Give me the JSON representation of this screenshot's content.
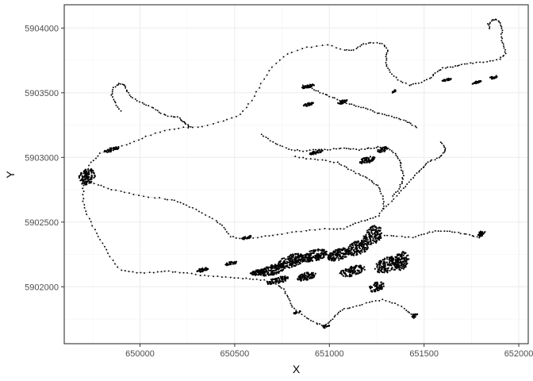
{
  "chart_data": {
    "type": "scatter",
    "title": "",
    "xlabel": "X",
    "ylabel": "Y",
    "xlim": [
      649600,
      652050
    ],
    "ylim": [
      5901560,
      5904180
    ],
    "x_ticks": [
      650000,
      650500,
      651000,
      651500,
      652000
    ],
    "x_tick_labels": [
      "650000",
      "650500",
      "651000",
      "651500",
      "652000"
    ],
    "y_ticks": [
      5902000,
      5902500,
      5903000,
      5903500,
      5904000
    ],
    "y_tick_labels": [
      "5902000",
      "5902500",
      "5903000",
      "5903500",
      "5904000"
    ],
    "grid": true,
    "legend": "none",
    "point_color": "#000000",
    "line_color": "#bdbdbd",
    "series": [
      {
        "path": [
          [
            649710,
            5902860
          ],
          [
            649740,
            5902960
          ],
          [
            649790,
            5903030
          ],
          [
            649860,
            5903070
          ],
          [
            649950,
            5903110
          ],
          [
            650030,
            5903160
          ],
          [
            650130,
            5903210
          ],
          [
            650230,
            5903230
          ],
          [
            650330,
            5903240
          ],
          [
            650440,
            5903280
          ],
          [
            650530,
            5903330
          ],
          [
            650590,
            5903440
          ],
          [
            650640,
            5903570
          ],
          [
            650700,
            5903700
          ],
          [
            650780,
            5903800
          ],
          [
            650880,
            5903850
          ],
          [
            650990,
            5903870
          ],
          [
            651080,
            5903830
          ],
          [
            651130,
            5903830
          ],
          [
            651170,
            5903870
          ],
          [
            651220,
            5903890
          ],
          [
            651280,
            5903880
          ],
          [
            651310,
            5903830
          ],
          [
            651300,
            5903780
          ],
          [
            651300,
            5903720
          ],
          [
            651320,
            5903660
          ],
          [
            651360,
            5903600
          ],
          [
            651420,
            5903560
          ],
          [
            651470,
            5903570
          ],
          [
            651530,
            5903610
          ],
          [
            651560,
            5903650
          ],
          [
            651600,
            5903690
          ],
          [
            651650,
            5903700
          ],
          [
            651700,
            5903720
          ],
          [
            651760,
            5903730
          ],
          [
            651830,
            5903740
          ],
          [
            651900,
            5903760
          ],
          [
            651930,
            5903800
          ],
          [
            651920,
            5903860
          ],
          [
            651910,
            5903920
          ],
          [
            651910,
            5903980
          ],
          [
            651900,
            5904040
          ],
          [
            651880,
            5904070
          ],
          [
            651860,
            5904060
          ],
          [
            651840,
            5904030
          ],
          [
            651850,
            5903990
          ]
        ],
        "path2": [
          [
            649710,
            5902860
          ],
          [
            649760,
            5902800
          ],
          [
            649830,
            5902760
          ],
          [
            649920,
            5902730
          ],
          [
            650020,
            5902700
          ],
          [
            650130,
            5902680
          ],
          [
            650200,
            5902660
          ],
          [
            650260,
            5902620
          ],
          [
            650330,
            5902570
          ],
          [
            650400,
            5902510
          ],
          [
            650440,
            5902460
          ],
          [
            650480,
            5902390
          ],
          [
            650540,
            5902370
          ],
          [
            650620,
            5902380
          ],
          [
            650700,
            5902400
          ],
          [
            650800,
            5902420
          ],
          [
            650900,
            5902440
          ],
          [
            651000,
            5902450
          ],
          [
            651080,
            5902450
          ],
          [
            651140,
            5902490
          ],
          [
            651200,
            5902520
          ],
          [
            651260,
            5902550
          ],
          [
            651290,
            5902620
          ],
          [
            651280,
            5902700
          ],
          [
            651260,
            5902770
          ],
          [
            651230,
            5902810
          ],
          [
            651190,
            5902850
          ],
          [
            651140,
            5902880
          ],
          [
            651090,
            5902920
          ],
          [
            651040,
            5902960
          ],
          [
            650960,
            5902980
          ],
          [
            650880,
            5902990
          ],
          [
            650800,
            5903010
          ]
        ],
        "path3": [
          [
            649710,
            5902860
          ],
          [
            649700,
            5902760
          ],
          [
            649700,
            5902660
          ],
          [
            649720,
            5902560
          ],
          [
            649760,
            5902440
          ],
          [
            649800,
            5902340
          ],
          [
            649840,
            5902230
          ],
          [
            649900,
            5902130
          ],
          [
            649980,
            5902110
          ],
          [
            650070,
            5902110
          ],
          [
            650150,
            5902120
          ],
          [
            650230,
            5902110
          ],
          [
            650320,
            5902090
          ],
          [
            650410,
            5902080
          ],
          [
            650500,
            5902070
          ],
          [
            650580,
            5902060
          ],
          [
            650660,
            5902050
          ],
          [
            650720,
            5902020
          ],
          [
            650760,
            5901980
          ],
          [
            650780,
            5901920
          ],
          [
            650800,
            5901860
          ],
          [
            650830,
            5901810
          ],
          [
            650880,
            5901760
          ],
          [
            650930,
            5901720
          ],
          [
            650970,
            5901700
          ],
          [
            651010,
            5901740
          ],
          [
            651040,
            5901790
          ],
          [
            651080,
            5901830
          ],
          [
            651140,
            5901850
          ],
          [
            651210,
            5901880
          ],
          [
            651280,
            5901900
          ],
          [
            651350,
            5901870
          ],
          [
            651410,
            5901820
          ],
          [
            651440,
            5901780
          ],
          [
            651450,
            5901750
          ]
        ],
        "path4": [
          [
            651290,
            5902600
          ],
          [
            651340,
            5902680
          ],
          [
            651390,
            5902760
          ],
          [
            651430,
            5902830
          ],
          [
            651470,
            5902890
          ],
          [
            651500,
            5902930
          ],
          [
            651530,
            5902970
          ],
          [
            651580,
            5903000
          ],
          [
            651610,
            5903040
          ],
          [
            651610,
            5903080
          ],
          [
            651580,
            5903130
          ]
        ],
        "path5": [
          [
            651290,
            5902400
          ],
          [
            651360,
            5902390
          ],
          [
            651440,
            5902380
          ],
          [
            651500,
            5902410
          ],
          [
            651560,
            5902430
          ],
          [
            651620,
            5902430
          ],
          [
            651680,
            5902420
          ],
          [
            651740,
            5902400
          ],
          [
            651790,
            5902380
          ],
          [
            651810,
            5902400
          ],
          [
            651830,
            5902430
          ]
        ],
        "path6": [
          [
            649900,
            5903360
          ],
          [
            649870,
            5903420
          ],
          [
            649850,
            5903480
          ],
          [
            649860,
            5903540
          ],
          [
            649890,
            5903570
          ],
          [
            649920,
            5903560
          ],
          [
            649930,
            5903510
          ],
          [
            649960,
            5903460
          ],
          [
            650010,
            5903420
          ],
          [
            650060,
            5903390
          ],
          [
            650100,
            5903350
          ],
          [
            650150,
            5903320
          ],
          [
            650200,
            5903310
          ],
          [
            650230,
            5903280
          ],
          [
            650250,
            5903250
          ],
          [
            650270,
            5903230
          ]
        ],
        "path7": [
          [
            650640,
            5903180
          ],
          [
            650690,
            5903130
          ],
          [
            650740,
            5903090
          ],
          [
            650800,
            5903060
          ],
          [
            650860,
            5903050
          ],
          [
            650930,
            5903060
          ],
          [
            650990,
            5903060
          ],
          [
            651050,
            5903070
          ],
          [
            651100,
            5903070
          ],
          [
            651160,
            5903060
          ],
          [
            651210,
            5903070
          ],
          [
            651260,
            5903080
          ],
          [
            651310,
            5903070
          ],
          [
            651350,
            5903030
          ],
          [
            651370,
            5902980
          ],
          [
            651380,
            5902920
          ],
          [
            651390,
            5902860
          ],
          [
            651380,
            5902800
          ],
          [
            651360,
            5902740
          ],
          [
            651330,
            5902690
          ]
        ],
        "path8": [
          [
            650860,
            5903560
          ],
          [
            650900,
            5903540
          ],
          [
            650940,
            5903510
          ],
          [
            650990,
            5903480
          ],
          [
            651040,
            5903450
          ],
          [
            651090,
            5903420
          ],
          [
            651140,
            5903400
          ],
          [
            651190,
            5903380
          ],
          [
            651240,
            5903350
          ],
          [
            651290,
            5903330
          ],
          [
            651340,
            5903310
          ],
          [
            651390,
            5903290
          ],
          [
            651430,
            5903260
          ],
          [
            651470,
            5903220
          ]
        ],
        "clusters": [
          [
            649720,
            5902850,
            45,
            60,
            120
          ],
          [
            649850,
            5903060,
            40,
            15,
            40
          ],
          [
            650480,
            5902180,
            30,
            15,
            30
          ],
          [
            650700,
            5902130,
            70,
            40,
            160
          ],
          [
            650800,
            5902200,
            70,
            50,
            160
          ],
          [
            650920,
            5902240,
            70,
            45,
            160
          ],
          [
            651050,
            5902250,
            60,
            45,
            140
          ],
          [
            651150,
            5902300,
            60,
            55,
            150
          ],
          [
            651230,
            5902400,
            50,
            70,
            140
          ],
          [
            651310,
            5902170,
            70,
            60,
            170
          ],
          [
            651380,
            5902200,
            40,
            70,
            110
          ],
          [
            651120,
            5902120,
            70,
            40,
            110
          ],
          [
            650880,
            5902080,
            50,
            30,
            90
          ],
          [
            651250,
            5902000,
            40,
            40,
            70
          ],
          [
            651280,
            5903060,
            25,
            20,
            40
          ],
          [
            651200,
            5902980,
            40,
            25,
            60
          ],
          [
            650890,
            5903550,
            35,
            12,
            45
          ],
          [
            650890,
            5903410,
            25,
            12,
            30
          ],
          [
            651070,
            5903430,
            25,
            15,
            30
          ],
          [
            650930,
            5903040,
            35,
            12,
            40
          ],
          [
            651340,
            5903510,
            12,
            10,
            14
          ],
          [
            651620,
            5903600,
            25,
            8,
            22
          ],
          [
            651780,
            5903580,
            25,
            10,
            22
          ],
          [
            651870,
            5903620,
            25,
            10,
            22
          ],
          [
            651800,
            5902410,
            15,
            20,
            22
          ],
          [
            650560,
            5902380,
            30,
            10,
            20
          ],
          [
            650830,
            5901800,
            20,
            10,
            15
          ],
          [
            650980,
            5901690,
            20,
            12,
            15
          ],
          [
            651450,
            5901780,
            15,
            15,
            15
          ],
          [
            650730,
            5902050,
            60,
            25,
            80
          ],
          [
            650620,
            5902110,
            40,
            20,
            60
          ],
          [
            650330,
            5902130,
            30,
            15,
            40
          ]
        ]
      }
    ]
  }
}
